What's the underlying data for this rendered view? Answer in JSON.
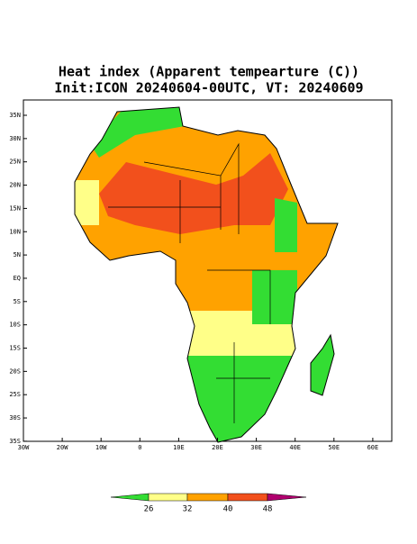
{
  "title": "Heat index (Apparent tempearture (C))",
  "subtitle": "Init:ICON 20240604-00UTC, VT: 20240609",
  "lat_labels": [
    "35N",
    "30N",
    "25N",
    "20N",
    "15N",
    "10N",
    "5N",
    "EQ",
    "5S",
    "10S",
    "15S",
    "20S",
    "25S",
    "30S",
    "35S"
  ],
  "lon_labels": [
    "30W",
    "20W",
    "10W",
    "0",
    "10E",
    "20E",
    "30E",
    "40E",
    "50E",
    "60E"
  ],
  "colorbar": {
    "labels": [
      26,
      32,
      40,
      48
    ],
    "colors": [
      "#33dd33",
      "#ffff88",
      "#ffa200",
      "#f2501c",
      "#b0006e"
    ]
  }
}
